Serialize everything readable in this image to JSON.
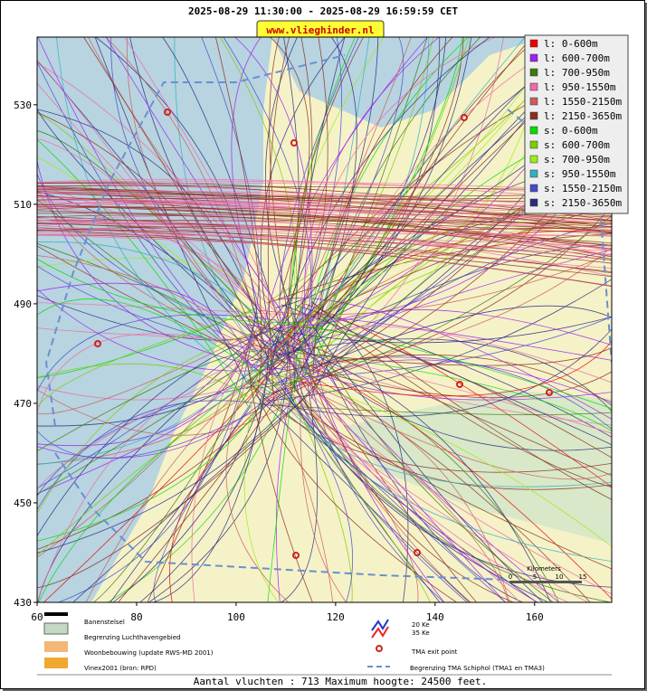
{
  "header": {
    "title": "2025-08-29 11:30:00 - 2025-08-29 16:59:59 CET",
    "website": "www.vlieghinder.nl"
  },
  "map": {
    "xlim": [
      60,
      175.5
    ],
    "ylim": [
      430,
      543.6
    ],
    "xticks": [
      60,
      80,
      100,
      120,
      140,
      160
    ],
    "yticks": [
      430,
      450,
      470,
      490,
      510,
      530
    ],
    "legend": [
      {
        "label": "l: 0-600m",
        "color": "#ee0000"
      },
      {
        "label": "l: 600-700m",
        "color": "#a020f0"
      },
      {
        "label": "l: 700-950m",
        "color": "#3a7a10"
      },
      {
        "label": "l: 950-1550m",
        "color": "#ee6aa7"
      },
      {
        "label": "l: 1550-2150m",
        "color": "#cd5c5c"
      },
      {
        "label": "l: 2150-3650m",
        "color": "#8b2e1e"
      },
      {
        "label": "s: 0-600m",
        "color": "#00dd00"
      },
      {
        "label": "s: 600-700m",
        "color": "#7ccd00"
      },
      {
        "label": "s: 700-950m",
        "color": "#99ee11"
      },
      {
        "label": "s: 950-1550m",
        "color": "#30b0c0"
      },
      {
        "label": "s: 1550-2150m",
        "color": "#4848c8"
      },
      {
        "label": "s: 2150-3650m",
        "color": "#2a2a80"
      }
    ]
  },
  "scale": {
    "title": "Kilometers",
    "ticks": [
      "0",
      "5",
      "10",
      "15"
    ]
  },
  "key": {
    "runways": "Banenstelsel",
    "airport_boundary": "Begrenzing Luchthavengebied",
    "housing": "Woonbebouwing (update RWS-MD 2001)",
    "vinex": "Vinex2001 (bron: RPD)",
    "ke20": "20 Ke",
    "ke35": "35 Ke",
    "exit_point": "TMA exit point",
    "tma_boundary": "Begrenzing TMA Schiphol  (TMA1 en TMA3)"
  },
  "footer": "Aantal vluchten : 713 Maximum hoogte: 24500 feet."
}
